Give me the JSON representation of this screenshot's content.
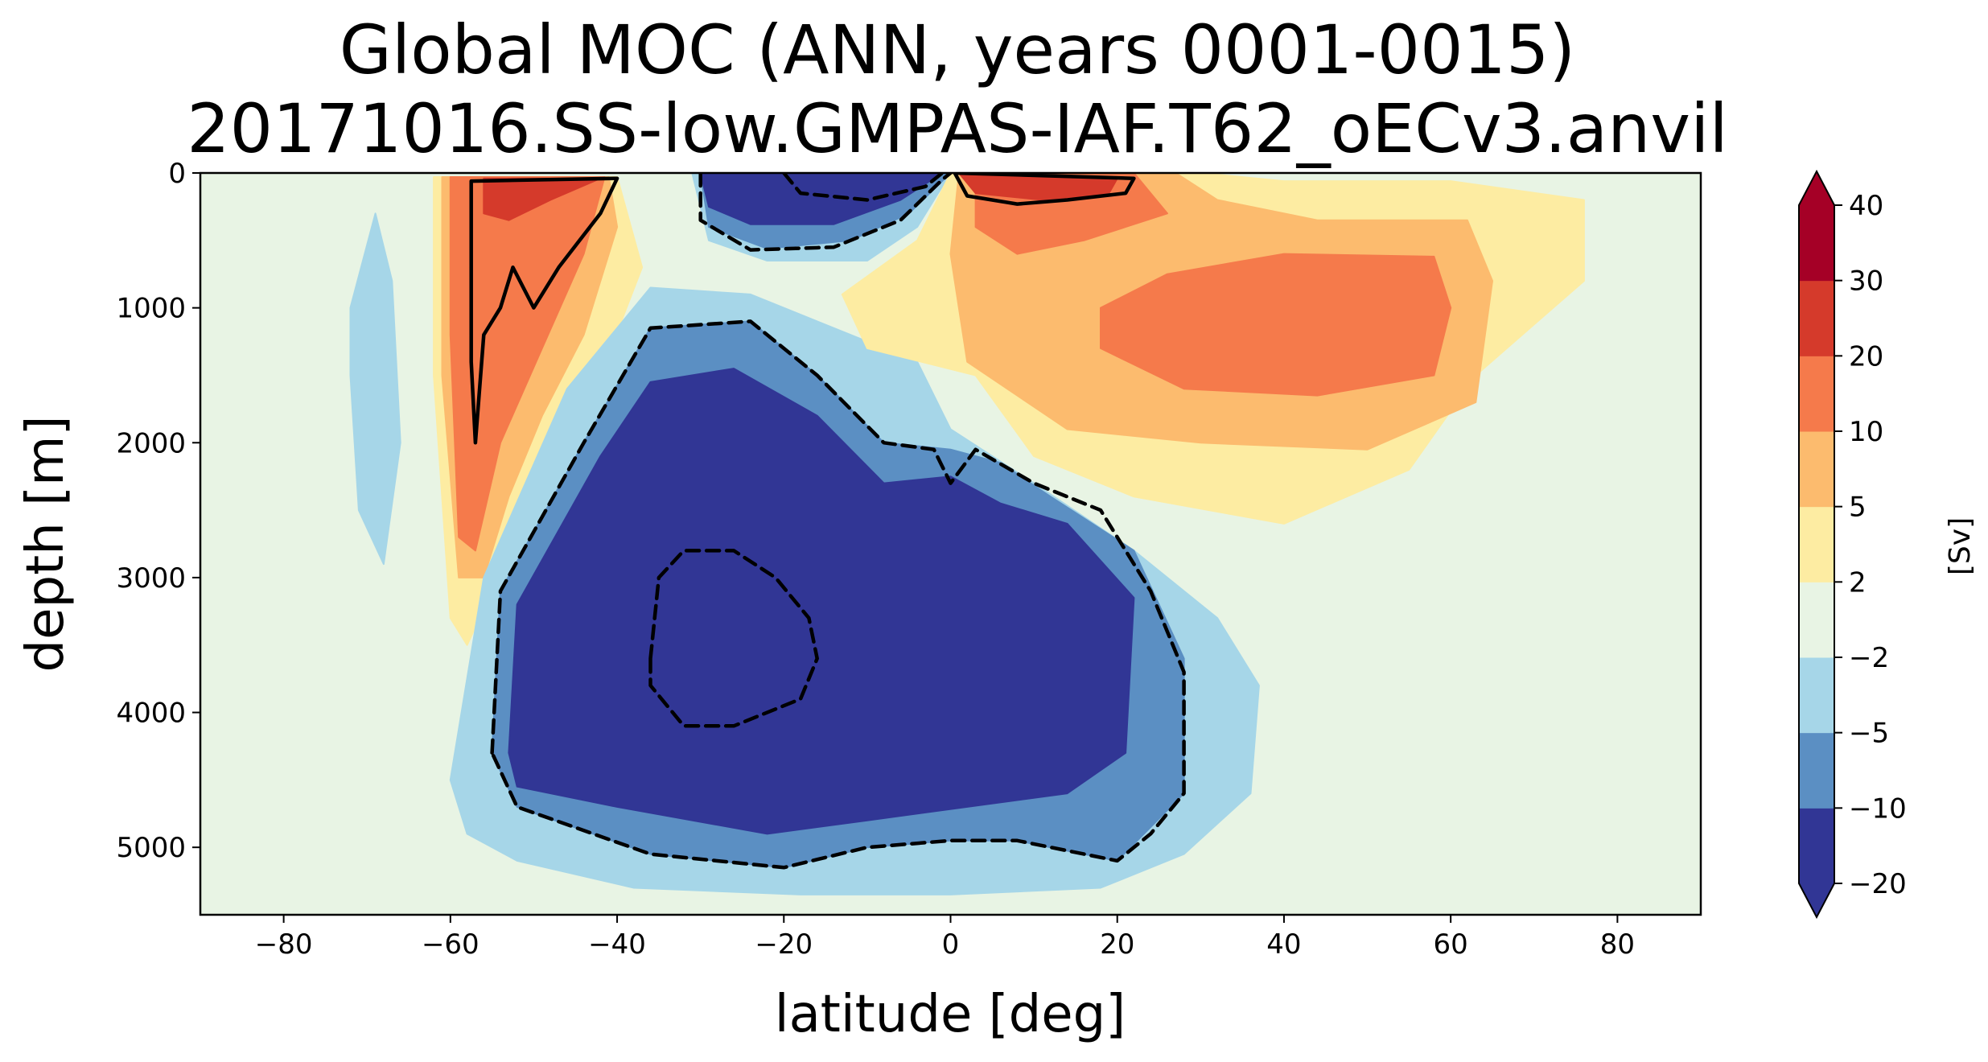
{
  "chart_data": {
    "type": "heatmap",
    "subtype": "filled-contour",
    "title": "Global MOC (ANN, years 0001-0015)",
    "subtitle": "20171016.SS-low.GMPAS-IAF.T62_oECv3.anvil",
    "xlabel": "latitude [deg]",
    "ylabel": "depth [m]",
    "xlim": [
      -90,
      90
    ],
    "ylim": [
      5500,
      0
    ],
    "xticks": [
      -80,
      -60,
      -40,
      -20,
      0,
      20,
      40,
      60,
      80
    ],
    "xtick_labels": [
      "−80",
      "−60",
      "−40",
      "−20",
      "0",
      "20",
      "40",
      "60",
      "80"
    ],
    "yticks": [
      0,
      1000,
      2000,
      3000,
      4000,
      5000
    ],
    "ytick_labels": [
      "0",
      "1000",
      "2000",
      "3000",
      "4000",
      "5000"
    ],
    "grid": false,
    "colorbar": {
      "label": "[Sv]",
      "placement": "right",
      "extend": "both",
      "levels": [
        -20,
        -10,
        -5,
        -2,
        2,
        5,
        10,
        20,
        30,
        40
      ],
      "level_labels": [
        "−20",
        "−10",
        "−5",
        "−2",
        "2",
        "5",
        "10",
        "20",
        "30",
        "40"
      ],
      "colors": [
        "#313695",
        "#5b8fc3",
        "#a6d6e8",
        "#e8f4e4",
        "#fdeca2",
        "#fcbb6e",
        "#f57a4b",
        "#d53a2b",
        "#a50026"
      ],
      "under_color": "#313695",
      "over_color": "#a50026"
    },
    "background_color": "#e8f4e4",
    "regions": [
      {
        "name": "southern-ocean-deacon-cell",
        "level": 2,
        "sign": "positive",
        "points": [
          [
            -62,
            30
          ],
          [
            -40,
            30
          ],
          [
            -37,
            700
          ],
          [
            -42,
            1500
          ],
          [
            -47,
            2000
          ],
          [
            -52,
            2500
          ],
          [
            -55,
            3100
          ],
          [
            -58,
            3500
          ],
          [
            -60,
            3300
          ],
          [
            -62,
            1500
          ]
        ]
      },
      {
        "name": "southern-ocean-deacon-cell",
        "level": 5,
        "sign": "positive",
        "points": [
          [
            -61,
            30
          ],
          [
            -41,
            30
          ],
          [
            -40,
            400
          ],
          [
            -44,
            1200
          ],
          [
            -49,
            1800
          ],
          [
            -53,
            2400
          ],
          [
            -56,
            3000
          ],
          [
            -59,
            3000
          ],
          [
            -61,
            1500
          ]
        ]
      },
      {
        "name": "southern-ocean-deacon-cell",
        "level": 10,
        "sign": "positive",
        "points": [
          [
            -60,
            30
          ],
          [
            -41.5,
            30
          ],
          [
            -44,
            600
          ],
          [
            -49,
            1300
          ],
          [
            -54,
            2000
          ],
          [
            -57,
            2800
          ],
          [
            -59,
            2700
          ],
          [
            -60,
            1200
          ]
        ]
      },
      {
        "name": "southern-ocean-deacon-cell",
        "level": 20,
        "sign": "positive",
        "points": [
          [
            -56,
            40
          ],
          [
            -42,
            40
          ],
          [
            -48,
            200
          ],
          [
            -53,
            350
          ],
          [
            -56,
            300
          ]
        ]
      },
      {
        "name": "southern-weak-negative",
        "level": -2,
        "sign": "negative",
        "points": [
          [
            -72,
            1000
          ],
          [
            -69,
            300
          ],
          [
            -67,
            800
          ],
          [
            -66,
            2000
          ],
          [
            -68,
            2900
          ],
          [
            -71,
            2500
          ],
          [
            -72,
            1500
          ]
        ]
      },
      {
        "name": "tropical-upper-cell-south",
        "level": -2,
        "sign": "negative",
        "points": [
          [
            -31,
            0
          ],
          [
            0,
            0
          ],
          [
            -4,
            400
          ],
          [
            -10,
            650
          ],
          [
            -22,
            650
          ],
          [
            -29,
            500
          ]
        ]
      },
      {
        "name": "tropical-upper-cell-south",
        "level": -5,
        "sign": "negative",
        "points": [
          [
            -30,
            0
          ],
          [
            0,
            0
          ],
          [
            -5,
            300
          ],
          [
            -12,
            500
          ],
          [
            -22,
            560
          ],
          [
            -29,
            400
          ]
        ]
      },
      {
        "name": "tropical-upper-cell-south",
        "level": -10,
        "sign": "negative",
        "points": [
          [
            -30,
            0
          ],
          [
            -1,
            0
          ],
          [
            -6,
            200
          ],
          [
            -14,
            380
          ],
          [
            -24,
            380
          ],
          [
            -29,
            250
          ]
        ]
      },
      {
        "name": "aabw-cell",
        "level": -2,
        "sign": "negative",
        "points": [
          [
            -60,
            4500
          ],
          [
            -56,
            3000
          ],
          [
            -46,
            1600
          ],
          [
            -36,
            850
          ],
          [
            -24,
            900
          ],
          [
            -12,
            1200
          ],
          [
            -4,
            1400
          ],
          [
            0,
            1900
          ],
          [
            10,
            2300
          ],
          [
            22,
            2800
          ],
          [
            32,
            3300
          ],
          [
            37,
            3800
          ],
          [
            36,
            4600
          ],
          [
            28,
            5050
          ],
          [
            18,
            5300
          ],
          [
            0,
            5350
          ],
          [
            -18,
            5350
          ],
          [
            -38,
            5300
          ],
          [
            -52,
            5100
          ],
          [
            -58,
            4900
          ]
        ]
      },
      {
        "name": "aabw-cell",
        "level": -5,
        "sign": "negative",
        "points": [
          [
            -55,
            4300
          ],
          [
            -54,
            3100
          ],
          [
            -44,
            2000
          ],
          [
            -36,
            1150
          ],
          [
            -24,
            1100
          ],
          [
            -16,
            1500
          ],
          [
            -8,
            2000
          ],
          [
            0,
            2050
          ],
          [
            6,
            2150
          ],
          [
            12,
            2400
          ],
          [
            22,
            2800
          ],
          [
            28,
            3600
          ],
          [
            28,
            4600
          ],
          [
            20,
            5100
          ],
          [
            8,
            4950
          ],
          [
            0,
            4950
          ],
          [
            -10,
            5000
          ],
          [
            -20,
            5150
          ],
          [
            -36,
            5050
          ],
          [
            -52,
            4700
          ]
        ]
      },
      {
        "name": "aabw-cell",
        "level": -10,
        "sign": "negative",
        "points": [
          [
            -53,
            4300
          ],
          [
            -52,
            3200
          ],
          [
            -42,
            2100
          ],
          [
            -36,
            1550
          ],
          [
            -26,
            1450
          ],
          [
            -16,
            1800
          ],
          [
            -8,
            2300
          ],
          [
            0,
            2250
          ],
          [
            6,
            2450
          ],
          [
            14,
            2600
          ],
          [
            22,
            3150
          ],
          [
            21,
            4300
          ],
          [
            14,
            4600
          ],
          [
            2,
            4700
          ],
          [
            -10,
            4800
          ],
          [
            -22,
            4900
          ],
          [
            -40,
            4700
          ],
          [
            -52,
            4550
          ]
        ]
      },
      {
        "name": "amoc-cell",
        "level": 2,
        "sign": "positive",
        "points": [
          [
            0,
            0
          ],
          [
            30,
            0
          ],
          [
            40,
            60
          ],
          [
            60,
            60
          ],
          [
            76,
            200
          ],
          [
            76,
            800
          ],
          [
            63,
            1500
          ],
          [
            55,
            2200
          ],
          [
            40,
            2600
          ],
          [
            22,
            2400
          ],
          [
            10,
            2100
          ],
          [
            3,
            1500
          ],
          [
            -10,
            1300
          ],
          [
            -13,
            900
          ],
          [
            -4,
            500
          ]
        ]
      },
      {
        "name": "amoc-cell",
        "level": 5,
        "sign": "positive",
        "points": [
          [
            1,
            0
          ],
          [
            27,
            0
          ],
          [
            32,
            200
          ],
          [
            44,
            350
          ],
          [
            62,
            350
          ],
          [
            65,
            800
          ],
          [
            63,
            1700
          ],
          [
            50,
            2050
          ],
          [
            30,
            2000
          ],
          [
            14,
            1900
          ],
          [
            2,
            1400
          ],
          [
            0,
            600
          ]
        ]
      },
      {
        "name": "amoc-cell",
        "level": 10,
        "sign": "positive",
        "points": [
          [
            3,
            0
          ],
          [
            22,
            0
          ],
          [
            26,
            300
          ],
          [
            16,
            500
          ],
          [
            8,
            600
          ],
          [
            3,
            400
          ]
        ]
      },
      {
        "name": "amoc-cell",
        "level": 10,
        "sign": "positive",
        "points": [
          [
            18,
            1000
          ],
          [
            26,
            750
          ],
          [
            40,
            600
          ],
          [
            58,
            620
          ],
          [
            60,
            1000
          ],
          [
            58,
            1500
          ],
          [
            44,
            1650
          ],
          [
            28,
            1600
          ],
          [
            18,
            1300
          ]
        ]
      },
      {
        "name": "amoc-cell",
        "level": 20,
        "sign": "positive",
        "points": [
          [
            1,
            0
          ],
          [
            20,
            40
          ],
          [
            19,
            150
          ],
          [
            11,
            200
          ],
          [
            3,
            150
          ]
        ]
      }
    ],
    "contour_lines": [
      {
        "style": "solid",
        "points": [
          [
            -57,
            2000
          ],
          [
            -57.5,
            1400
          ],
          [
            -57.5,
            60
          ],
          [
            -40,
            40
          ],
          [
            -42,
            300
          ],
          [
            -47,
            700
          ],
          [
            -50,
            1000
          ],
          [
            -52.5,
            700
          ],
          [
            -54,
            1000
          ],
          [
            -56,
            1200
          ],
          [
            -57,
            2000
          ]
        ]
      },
      {
        "style": "solid",
        "points": [
          [
            0.5,
            0
          ],
          [
            22,
            40
          ],
          [
            21,
            150
          ],
          [
            14,
            200
          ],
          [
            8,
            230
          ],
          [
            2,
            170
          ],
          [
            0.5,
            0
          ]
        ]
      },
      {
        "style": "dashed",
        "points": [
          [
            -30,
            0
          ],
          [
            -30,
            350
          ],
          [
            -24,
            570
          ],
          [
            -14,
            550
          ],
          [
            -6,
            350
          ],
          [
            -1,
            50
          ],
          [
            0,
            0
          ]
        ]
      },
      {
        "style": "dashed",
        "points": [
          [
            -20,
            0
          ],
          [
            -18,
            150
          ],
          [
            -10,
            200
          ],
          [
            -3,
            100
          ],
          [
            -1,
            0
          ]
        ]
      },
      {
        "style": "dashed",
        "points": [
          [
            -55,
            4300
          ],
          [
            -54,
            3100
          ],
          [
            -44,
            2000
          ],
          [
            -36,
            1150
          ],
          [
            -24,
            1100
          ],
          [
            -16,
            1500
          ],
          [
            -8,
            2000
          ],
          [
            -2,
            2050
          ],
          [
            0,
            2300
          ],
          [
            3,
            2050
          ],
          [
            10,
            2300
          ],
          [
            18,
            2500
          ],
          [
            24,
            3100
          ],
          [
            28,
            3700
          ],
          [
            28,
            4600
          ],
          [
            24,
            4900
          ],
          [
            20,
            5100
          ],
          [
            8,
            4950
          ],
          [
            0,
            4950
          ],
          [
            -10,
            5000
          ],
          [
            -20,
            5150
          ],
          [
            -36,
            5050
          ],
          [
            -52,
            4700
          ],
          [
            -55,
            4300
          ]
        ]
      },
      {
        "style": "dashed",
        "points": [
          [
            -36,
            3600
          ],
          [
            -35,
            3000
          ],
          [
            -32,
            2800
          ],
          [
            -26,
            2800
          ],
          [
            -21,
            3000
          ],
          [
            -17,
            3300
          ],
          [
            -16,
            3600
          ],
          [
            -18,
            3900
          ],
          [
            -26,
            4100
          ],
          [
            -32,
            4100
          ],
          [
            -36,
            3800
          ],
          [
            -36,
            3600
          ]
        ]
      }
    ]
  }
}
